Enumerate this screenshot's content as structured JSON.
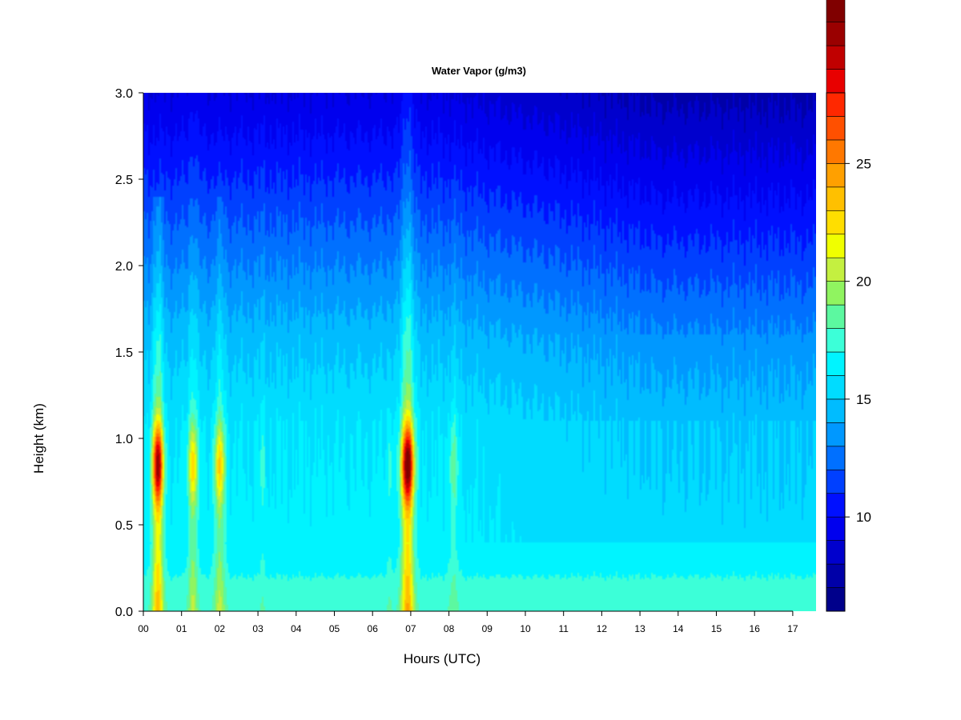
{
  "chart_data": {
    "type": "heatmap",
    "title": "Water Vapor (g/m3)",
    "xlabel": "Hours (UTC)",
    "ylabel": "Height (km)",
    "xlim": [
      0,
      17.65
    ],
    "ylim": [
      0.0,
      3.0
    ],
    "x_ticks": [
      "00",
      "01",
      "02",
      "03",
      "04",
      "05",
      "06",
      "07",
      "08",
      "09",
      "10",
      "11",
      "12",
      "13",
      "14",
      "15",
      "16",
      "17"
    ],
    "y_ticks": [
      "0.0",
      "0.5",
      "1.0",
      "1.5",
      "2.0",
      "2.5",
      "3.0"
    ],
    "colorbar": {
      "range": [
        6,
        28
      ],
      "step": 1,
      "ticks": [
        "10",
        "15",
        "20",
        "25"
      ],
      "colors": [
        "#00008b",
        "#0000a8",
        "#0000cd",
        "#0000ee",
        "#0010ff",
        "#0040ff",
        "#0070ff",
        "#0098ff",
        "#00bcff",
        "#00dcff",
        "#00f4ff",
        "#3cffd8",
        "#5cf8a0",
        "#90f460",
        "#c4f040",
        "#f0ff00",
        "#ffde00",
        "#ffc000",
        "#ffa000",
        "#ff7800",
        "#ff5000",
        "#ff2800",
        "#e80000",
        "#c00000",
        "#9a0000",
        "#800000"
      ]
    },
    "plumes": [
      {
        "x": 0.38,
        "width": 0.14,
        "peak": 27,
        "z_top": 2.4
      },
      {
        "x": 1.3,
        "width": 0.12,
        "peak": 21,
        "z_top": 3.0
      },
      {
        "x": 2.0,
        "width": 0.14,
        "peak": 21,
        "z_top": 2.4
      },
      {
        "x": 3.12,
        "width": 0.06,
        "peak": 17,
        "z_top": 3.0
      },
      {
        "x": 6.45,
        "width": 0.08,
        "peak": 17,
        "z_top": 3.0
      },
      {
        "x": 6.92,
        "width": 0.16,
        "peak": 28,
        "z_top": 3.0
      },
      {
        "x": 8.12,
        "width": 0.12,
        "peak": 18,
        "z_top": 2.5
      }
    ]
  }
}
